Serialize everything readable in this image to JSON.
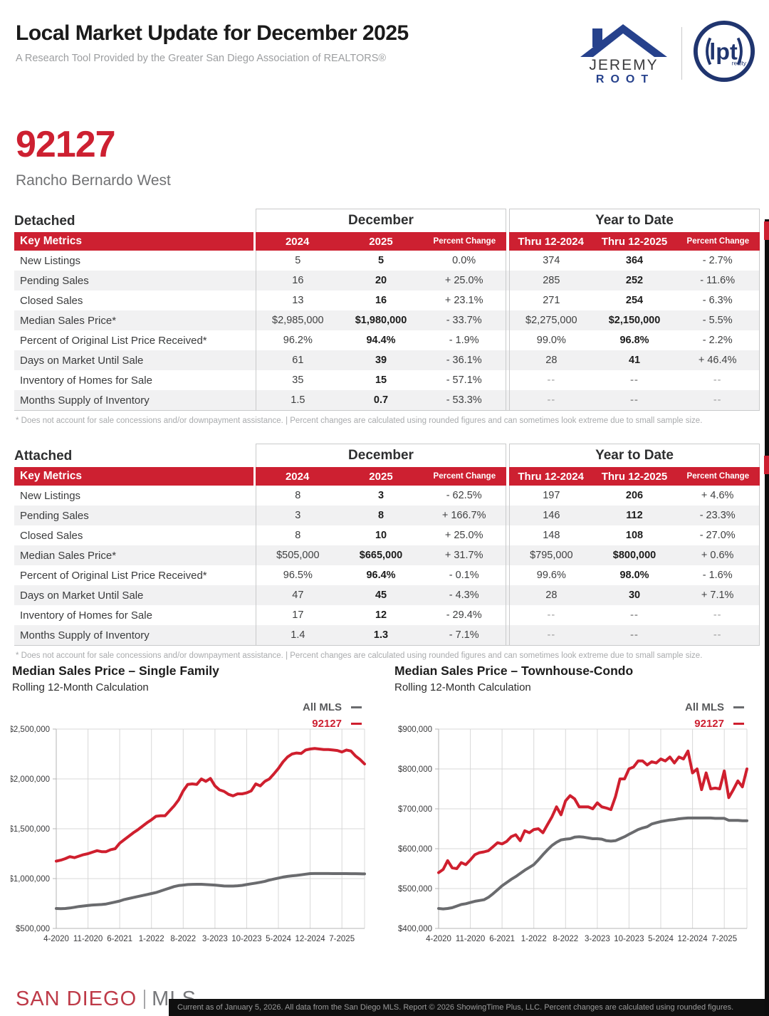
{
  "header": {
    "title": "Local Market Update for December 2025",
    "subtitle": "A Research Tool Provided by the Greater San Diego Association of REALTORS®",
    "logo_jeremy": {
      "line1": "JEREMY",
      "line2": "ROOT"
    },
    "logo_lpt": {
      "text": "lpt",
      "sub": "realty"
    }
  },
  "area": {
    "zip": "92127",
    "name": "Rancho Bernardo West"
  },
  "tables": [
    {
      "section": "Detached",
      "month_header": "December",
      "ytd_header": "Year to Date",
      "key_metrics_label": "Key Metrics",
      "columns": [
        "2024",
        "2025",
        "Percent Change",
        "Thru 12-2024",
        "Thru 12-2025",
        "Percent Change"
      ],
      "rows": [
        {
          "label": "New Listings",
          "values": [
            "5",
            "5",
            "0.0%",
            "374",
            "364",
            "- 2.7%"
          ]
        },
        {
          "label": "Pending Sales",
          "values": [
            "16",
            "20",
            "+ 25.0%",
            "285",
            "252",
            "- 11.6%"
          ]
        },
        {
          "label": "Closed Sales",
          "values": [
            "13",
            "16",
            "+ 23.1%",
            "271",
            "254",
            "- 6.3%"
          ]
        },
        {
          "label": "Median Sales Price*",
          "values": [
            "$2,985,000",
            "$1,980,000",
            "- 33.7%",
            "$2,275,000",
            "$2,150,000",
            "- 5.5%"
          ]
        },
        {
          "label": "Percent of Original List Price Received*",
          "values": [
            "96.2%",
            "94.4%",
            "- 1.9%",
            "99.0%",
            "96.8%",
            "- 2.2%"
          ]
        },
        {
          "label": "Days on Market Until Sale",
          "values": [
            "61",
            "39",
            "- 36.1%",
            "28",
            "41",
            "+ 46.4%"
          ]
        },
        {
          "label": "Inventory of Homes for Sale",
          "values": [
            "35",
            "15",
            "- 57.1%",
            "--",
            "--",
            "--"
          ]
        },
        {
          "label": "Months Supply of Inventory",
          "values": [
            "1.5",
            "0.7",
            "- 53.3%",
            "--",
            "--",
            "--"
          ]
        }
      ],
      "footnote": "* Does not account for sale concessions and/or downpayment assistance.  |  Percent changes are calculated using rounded figures and can sometimes look extreme due to small sample size."
    },
    {
      "section": "Attached",
      "month_header": "December",
      "ytd_header": "Year to Date",
      "key_metrics_label": "Key Metrics",
      "columns": [
        "2024",
        "2025",
        "Percent Change",
        "Thru 12-2024",
        "Thru 12-2025",
        "Percent Change"
      ],
      "rows": [
        {
          "label": "New Listings",
          "values": [
            "8",
            "3",
            "- 62.5%",
            "197",
            "206",
            "+ 4.6%"
          ]
        },
        {
          "label": "Pending Sales",
          "values": [
            "3",
            "8",
            "+ 166.7%",
            "146",
            "112",
            "- 23.3%"
          ]
        },
        {
          "label": "Closed Sales",
          "values": [
            "8",
            "10",
            "+ 25.0%",
            "148",
            "108",
            "- 27.0%"
          ]
        },
        {
          "label": "Median Sales Price*",
          "values": [
            "$505,000",
            "$665,000",
            "+ 31.7%",
            "$795,000",
            "$800,000",
            "+ 0.6%"
          ]
        },
        {
          "label": "Percent of Original List Price Received*",
          "values": [
            "96.5%",
            "96.4%",
            "- 0.1%",
            "99.6%",
            "98.0%",
            "- 1.6%"
          ]
        },
        {
          "label": "Days on Market Until Sale",
          "values": [
            "47",
            "45",
            "- 4.3%",
            "28",
            "30",
            "+ 7.1%"
          ]
        },
        {
          "label": "Inventory of Homes for Sale",
          "values": [
            "17",
            "12",
            "- 29.4%",
            "--",
            "--",
            "--"
          ]
        },
        {
          "label": "Months Supply of Inventory",
          "values": [
            "1.4",
            "1.3",
            "- 7.1%",
            "--",
            "--",
            "--"
          ]
        }
      ],
      "footnote": "* Does not account for sale concessions and/or downpayment assistance.  |  Percent changes are calculated using rounded figures and can sometimes look extreme due to small sample size."
    }
  ],
  "chart_data": [
    {
      "type": "line",
      "title": "Median Sales Price – Single Family",
      "subtitle": "Rolling 12-Month Calculation",
      "x_start": "4-2020",
      "x_end": "12-2025",
      "x_tick_labels": [
        "4-2020",
        "11-2020",
        "6-2021",
        "1-2022",
        "8-2022",
        "3-2023",
        "10-2023",
        "5-2024",
        "12-2024",
        "7-2025"
      ],
      "ylim": [
        500000,
        2500000
      ],
      "y_tick_step": 500000,
      "y_tick_labels": [
        "$500,000",
        "$1,000,000",
        "$1,500,000",
        "$2,000,000",
        "$2,500,000"
      ],
      "grid": true,
      "legend_position": "top-right",
      "series": [
        {
          "name": "All MLS",
          "color": "#6A6B6E",
          "values": [
            700000,
            698000,
            700000,
            705000,
            712000,
            720000,
            725000,
            730000,
            735000,
            738000,
            740000,
            745000,
            755000,
            765000,
            775000,
            790000,
            800000,
            810000,
            820000,
            830000,
            840000,
            850000,
            860000,
            875000,
            890000,
            905000,
            920000,
            930000,
            935000,
            940000,
            942000,
            943000,
            943000,
            940000,
            938000,
            935000,
            930000,
            926000,
            925000,
            925000,
            928000,
            932000,
            940000,
            948000,
            955000,
            963000,
            972000,
            985000,
            995000,
            1005000,
            1015000,
            1022000,
            1028000,
            1032000,
            1038000,
            1044000,
            1050000,
            1051000,
            1051000,
            1051000,
            1051000,
            1050000,
            1050000,
            1050000,
            1050000,
            1049000,
            1049000,
            1048000,
            1047000
          ]
        },
        {
          "name": "92127",
          "color": "#CF1F2E",
          "values": [
            1175000,
            1185000,
            1200000,
            1220000,
            1210000,
            1225000,
            1240000,
            1250000,
            1265000,
            1280000,
            1270000,
            1270000,
            1290000,
            1300000,
            1355000,
            1390000,
            1425000,
            1460000,
            1490000,
            1525000,
            1560000,
            1590000,
            1625000,
            1630000,
            1630000,
            1680000,
            1730000,
            1790000,
            1880000,
            1945000,
            1950000,
            1945000,
            2000000,
            1975000,
            2005000,
            1930000,
            1890000,
            1875000,
            1845000,
            1830000,
            1850000,
            1850000,
            1860000,
            1880000,
            1950000,
            1930000,
            1975000,
            2000000,
            2050000,
            2105000,
            2170000,
            2220000,
            2250000,
            2260000,
            2255000,
            2290000,
            2300000,
            2305000,
            2300000,
            2295000,
            2295000,
            2290000,
            2285000,
            2270000,
            2290000,
            2280000,
            2230000,
            2195000,
            2150000
          ]
        }
      ]
    },
    {
      "type": "line",
      "title": "Median Sales Price – Townhouse-Condo",
      "subtitle": "Rolling 12-Month Calculation",
      "x_start": "4-2020",
      "x_end": "12-2025",
      "x_tick_labels": [
        "4-2020",
        "11-2020",
        "6-2021",
        "1-2022",
        "8-2022",
        "3-2023",
        "10-2023",
        "5-2024",
        "12-2024",
        "7-2025"
      ],
      "ylim": [
        400000,
        900000
      ],
      "y_tick_step": 100000,
      "y_tick_labels": [
        "$400,000",
        "$500,000",
        "$600,000",
        "$700,000",
        "$800,000",
        "$900,000"
      ],
      "grid": true,
      "legend_position": "top-right",
      "series": [
        {
          "name": "All MLS",
          "color": "#6A6B6E",
          "values": [
            450000,
            449000,
            450000,
            452000,
            456000,
            460000,
            462000,
            465000,
            468000,
            470000,
            472000,
            478000,
            487000,
            497000,
            507000,
            515000,
            523000,
            530000,
            538000,
            546000,
            553000,
            560000,
            572000,
            585000,
            597000,
            608000,
            616000,
            622000,
            624000,
            625000,
            629000,
            630000,
            629000,
            627000,
            625000,
            625000,
            624000,
            620000,
            619000,
            620000,
            625000,
            630000,
            636000,
            642000,
            648000,
            652000,
            655000,
            662000,
            665000,
            668000,
            670000,
            672000,
            673000,
            675000,
            676000,
            677000,
            677000,
            677000,
            677000,
            677000,
            677000,
            676000,
            676000,
            676000,
            671000,
            671000,
            671000,
            670000,
            670000
          ]
        },
        {
          "name": "92127",
          "color": "#CF1F2E",
          "values": [
            540000,
            548000,
            570000,
            552000,
            550000,
            565000,
            560000,
            572000,
            585000,
            590000,
            592000,
            595000,
            605000,
            615000,
            612000,
            618000,
            630000,
            635000,
            620000,
            645000,
            640000,
            648000,
            650000,
            640000,
            660000,
            680000,
            705000,
            685000,
            720000,
            733000,
            725000,
            705000,
            705000,
            705000,
            700000,
            715000,
            705000,
            702000,
            698000,
            730000,
            775000,
            775000,
            800000,
            805000,
            820000,
            820000,
            810000,
            818000,
            815000,
            825000,
            820000,
            830000,
            815000,
            830000,
            825000,
            845000,
            790000,
            800000,
            748000,
            790000,
            750000,
            752000,
            750000,
            795000,
            728000,
            748000,
            770000,
            755000,
            800000
          ]
        }
      ]
    }
  ],
  "footer": {
    "logo": {
      "part1": "SAN DIEGO",
      "part2": "MLS"
    },
    "disclaimer": "Current as of January 5, 2026. All data from the San Diego MLS. Report © 2026 ShowingTime Plus, LLC. Percent changes are calculated using rounded figures."
  }
}
